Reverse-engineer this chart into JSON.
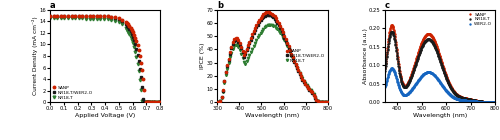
{
  "panel_a": {
    "title": "a",
    "xlabel": "Applied Voltage (V)",
    "ylabel": "Current Density (mA cm⁻²)",
    "xlim": [
      0.0,
      0.8
    ],
    "ylim": [
      0,
      16
    ],
    "yticks": [
      0,
      2,
      4,
      6,
      8,
      10,
      12,
      14,
      16
    ],
    "xticks": [
      0.0,
      0.1,
      0.2,
      0.3,
      0.4,
      0.5,
      0.6,
      0.7,
      0.8
    ],
    "legend": [
      "SANP",
      "NR18-T/WER2-O",
      "NR18-T"
    ],
    "colors": [
      "#cc2200",
      "#1a1a1a",
      "#2e7d32"
    ],
    "markers": [
      "o",
      "s",
      "v"
    ]
  },
  "panel_b": {
    "title": "b",
    "xlabel": "Wavelength (nm)",
    "ylabel": "IPCE (%)",
    "xlim": [
      300,
      800
    ],
    "ylim": [
      0,
      70
    ],
    "yticks": [
      0,
      10,
      20,
      30,
      40,
      50,
      60,
      70
    ],
    "legend": [
      "SANP",
      "NR18-T/WER2-O",
      "NR18-T"
    ],
    "colors": [
      "#cc2200",
      "#1a1a1a",
      "#2e7d32"
    ],
    "markers": [
      "o",
      "s",
      "v"
    ]
  },
  "panel_c": {
    "title": "c",
    "xlabel": "Wavelength (nm)",
    "ylabel": "Absorbance (a.u.)",
    "xlim": [
      350,
      800
    ],
    "ylim": [
      0.0,
      0.25
    ],
    "yticks": [
      0.0,
      0.05,
      0.1,
      0.15,
      0.2,
      0.25
    ],
    "legend": [
      "SANP",
      "NR18-T",
      "WER2-O"
    ],
    "colors": [
      "#cc2200",
      "#1a1a1a",
      "#1565c0"
    ],
    "linestyles": [
      "dotted",
      "dotted",
      "dotted"
    ]
  }
}
